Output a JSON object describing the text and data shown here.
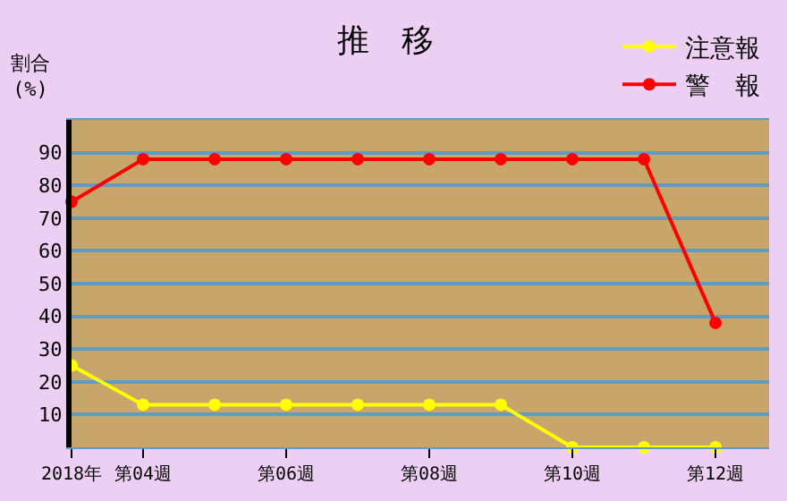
{
  "chart_data": {
    "type": "line",
    "title": "推　移",
    "ylabel": "割合\n(%)",
    "categories": [
      "2018年",
      "第04週",
      null,
      "第06週",
      null,
      "第08週",
      null,
      "第10週",
      null,
      "第12週"
    ],
    "series": [
      {
        "name": "注意報",
        "color": "#ffff00",
        "values": [
          25,
          13,
          13,
          13,
          13,
          13,
          13,
          0,
          0,
          0
        ]
      },
      {
        "name": "警　報",
        "color": "#ff0000",
        "values": [
          75,
          88,
          88,
          88,
          88,
          88,
          88,
          88,
          88,
          38
        ]
      }
    ],
    "ylim": [
      0,
      100
    ],
    "yticks": [
      10,
      20,
      30,
      40,
      50,
      60,
      70,
      80,
      90
    ],
    "grid": "y",
    "legend": "top right",
    "marker": "circle",
    "line_style": "solid"
  }
}
